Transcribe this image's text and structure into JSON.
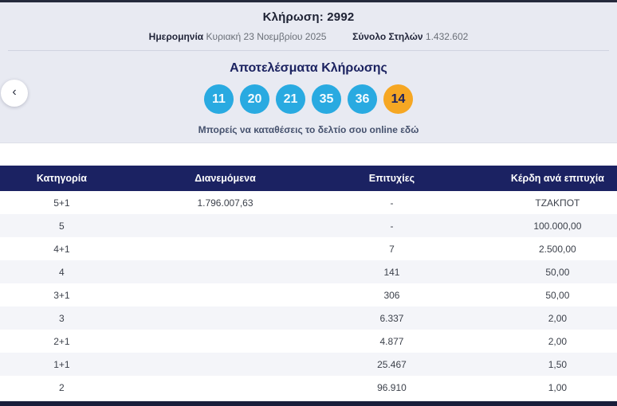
{
  "header": {
    "draw_title": "Κλήρωση: 2992",
    "date_label": "Ημερομηνία",
    "date_value": "Κυριακή 23 Νοεμβρίου 2025",
    "columns_label": "Σύνολο Στηλών",
    "columns_value": "1.432.602"
  },
  "results": {
    "title": "Αποτελέσματα Κλήρωσης",
    "numbers": [
      "11",
      "20",
      "21",
      "35",
      "36"
    ],
    "bonus_number": "14",
    "deposit_link_text": "Μπορείς να καταθέσεις το δελτίο σου online εδώ",
    "prev_icon": "‹"
  },
  "table": {
    "headers": [
      "Κατηγορία",
      "Διανεμόμενα",
      "Επιτυχίες",
      "Κέρδη ανά επιτυχία"
    ],
    "rows": [
      {
        "category": "5+1",
        "distributed": "1.796.007,63",
        "winners": "-",
        "prize": "ΤΖΑΚΠΟΤ"
      },
      {
        "category": "5",
        "distributed": "",
        "winners": "-",
        "prize": "100.000,00"
      },
      {
        "category": "4+1",
        "distributed": "",
        "winners": "7",
        "prize": "2.500,00"
      },
      {
        "category": "4",
        "distributed": "",
        "winners": "141",
        "prize": "50,00"
      },
      {
        "category": "3+1",
        "distributed": "",
        "winners": "306",
        "prize": "50,00"
      },
      {
        "category": "3",
        "distributed": "",
        "winners": "6.337",
        "prize": "2,00"
      },
      {
        "category": "2+1",
        "distributed": "",
        "winners": "4.877",
        "prize": "2,00"
      },
      {
        "category": "1+1",
        "distributed": "",
        "winners": "25.467",
        "prize": "1,50"
      },
      {
        "category": "2",
        "distributed": "",
        "winners": "96.910",
        "prize": "1,00"
      }
    ]
  },
  "colors": {
    "navy": "#1b2262",
    "number_ball": "#29aae1",
    "bonus_ball": "#f6a723",
    "bonus_text": "#1b2260",
    "hero_bg": "#e8eaf2",
    "row_alt": "#f4f5f9",
    "dark_bar": "#191d3a"
  }
}
